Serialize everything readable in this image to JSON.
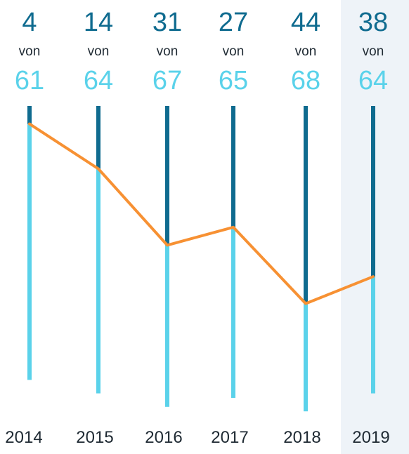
{
  "chart_data": {
    "type": "line",
    "categories": [
      "2014",
      "2015",
      "2016",
      "2017",
      "2018",
      "2019"
    ],
    "series": [
      {
        "values": [
          4,
          14,
          31,
          27,
          44,
          38
        ]
      }
    ],
    "totals": [
      61,
      64,
      67,
      65,
      68,
      64
    ],
    "connector": "von",
    "highlighted_category": "2019",
    "grid": false,
    "colors": {
      "rank_text": "#0f6b8f",
      "total_text": "#5ad2ea",
      "connector_text": "#1f2a33",
      "rank_segment": "#0f6b8f",
      "remaining_segment": "#5ad2ea",
      "line": "#f79133",
      "year_text": "#1f2a33",
      "highlight_bg": "#eef3f8"
    }
  }
}
